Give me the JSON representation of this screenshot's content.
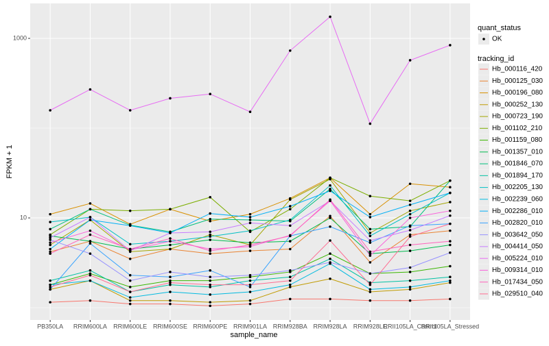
{
  "chart_data": {
    "type": "line",
    "x_label": "sample_name",
    "y_label": "FPKM + 1",
    "categories": [
      "PB350LA",
      "RRIM600LA",
      "RRIM600LE",
      "RRIM600SE",
      "RRIM600PE",
      "RRIM901LA",
      "RRIM928BA",
      "RRIM928LA",
      "RRIM928LE",
      "RRII105LA_Control",
      "RRII105LA_Stressed"
    ],
    "log_scale": true,
    "grid": true,
    "ylim": [
      0.73,
      2450
    ],
    "yticks": [
      10,
      1000
    ],
    "y_minor_ticks": [
      1,
      100
    ],
    "legend_position": "right",
    "point_legend_title": "quant_status",
    "point_legend_items": [
      "OK"
    ],
    "point_color": "#000000",
    "legend_title": "tracking_id",
    "series": [
      {
        "name": "Hb_000116_420",
        "color": "#F8766D",
        "values": [
          1.15,
          1.2,
          1.1,
          1.1,
          1.05,
          1.1,
          1.25,
          1.25,
          1.2,
          1.2,
          1.25
        ]
      },
      {
        "name": "Hb_000125_030",
        "color": "#EA8331",
        "values": [
          4.2,
          5.5,
          3.5,
          4.5,
          4.0,
          4.3,
          4.5,
          10.5,
          3.2,
          6.5,
          7.2
        ]
      },
      {
        "name": "Hb_000196_080",
        "color": "#D89000",
        "values": [
          11,
          14.5,
          8.5,
          12.5,
          9.2,
          11,
          16.5,
          28,
          11,
          24,
          22
        ]
      },
      {
        "name": "Hb_000252_130",
        "color": "#C09B00",
        "values": [
          1.6,
          2.0,
          1.2,
          1.2,
          1.15,
          1.2,
          1.7,
          2.1,
          1.5,
          1.6,
          1.9
        ]
      },
      {
        "name": "Hb_000723_190",
        "color": "#A3A500",
        "values": [
          5.0,
          9.5,
          4.2,
          4.5,
          6.5,
          5.0,
          16,
          27,
          6.8,
          12,
          15
        ]
      },
      {
        "name": "Hb_001102_210",
        "color": "#7CAE00",
        "values": [
          6.5,
          12.5,
          12,
          12.5,
          17,
          7,
          12.5,
          28,
          17.5,
          15.5,
          26
        ]
      },
      {
        "name": "Hb_001159_080",
        "color": "#39B600",
        "values": [
          1.8,
          2.4,
          1.7,
          2.0,
          2.0,
          2.2,
          2.5,
          4.0,
          2.4,
          2.5,
          2.9
        ]
      },
      {
        "name": "Hb_001357_010",
        "color": "#00BB4E",
        "values": [
          6.3,
          5.5,
          4.5,
          5.0,
          5.7,
          5.3,
          5.5,
          10,
          4.0,
          4.3,
          5.0
        ]
      },
      {
        "name": "Hb_001846_070",
        "color": "#00BF7D",
        "values": [
          7.5,
          12.5,
          8.3,
          7.0,
          9.7,
          9.5,
          9.2,
          21,
          7.5,
          8,
          26
        ]
      },
      {
        "name": "Hb_001894_170",
        "color": "#00C1A3",
        "values": [
          2.0,
          2.6,
          1.5,
          1.8,
          1.7,
          2.0,
          2.2,
          3.5,
          1.9,
          2.0,
          2.2
        ]
      },
      {
        "name": "Hb_002205_130",
        "color": "#00BFC4",
        "values": [
          9.0,
          10.2,
          5.1,
          5.5,
          6.2,
          7.2,
          9.5,
          23,
          6.3,
          11,
          19
        ]
      },
      {
        "name": "Hb_002239_060",
        "color": "#00BAE0",
        "values": [
          1.8,
          2.0,
          1.3,
          1.5,
          1.4,
          1.5,
          1.8,
          3.1,
          1.6,
          1.7,
          2.0
        ]
      },
      {
        "name": "Hb_002286_010",
        "color": "#00B0F6",
        "values": [
          4.5,
          9.5,
          8.2,
          6.8,
          11.2,
          10.2,
          13.5,
          20,
          10.2,
          14,
          19
        ]
      },
      {
        "name": "Hb_002820_010",
        "color": "#35A2FF",
        "values": [
          1.6,
          5.2,
          2.3,
          2.2,
          2.6,
          1.7,
          6.3,
          8.0,
          5.3,
          8.2,
          8.6
        ]
      },
      {
        "name": "Hb_003642_050",
        "color": "#9590FF",
        "values": [
          5.7,
          4.0,
          2.0,
          2.5,
          2.2,
          2.3,
          2.6,
          3.2,
          2.4,
          2.8,
          4.1
        ]
      },
      {
        "name": "Hb_004414_050",
        "color": "#C77CFF",
        "values": [
          6.0,
          10.2,
          4.3,
          6.8,
          7.0,
          8.8,
          8.2,
          15.5,
          5.6,
          7.3,
          10.6
        ]
      },
      {
        "name": "Hb_005224_010",
        "color": "#E76BF3",
        "values": [
          158,
          270,
          158,
          215,
          240,
          152,
          730,
          1740,
          112,
          570,
          840
        ]
      },
      {
        "name": "Hb_009314_010",
        "color": "#FA62DB",
        "values": [
          5.3,
          7.2,
          4.4,
          5.5,
          4.5,
          4.8,
          6.4,
          15.5,
          3.8,
          10,
          12
        ]
      },
      {
        "name": "Hb_017434_050",
        "color": "#FF62BC",
        "values": [
          4.0,
          6.5,
          4.5,
          5.9,
          4.3,
          5.0,
          6.3,
          16,
          4.2,
          5,
          5.5
        ]
      },
      {
        "name": "Hb_029510_040",
        "color": "#FF6C91",
        "values": [
          1.7,
          2.3,
          1.5,
          1.9,
          1.8,
          1.8,
          2.0,
          5.6,
          1.8,
          6.2,
          8.6
        ]
      }
    ]
  }
}
